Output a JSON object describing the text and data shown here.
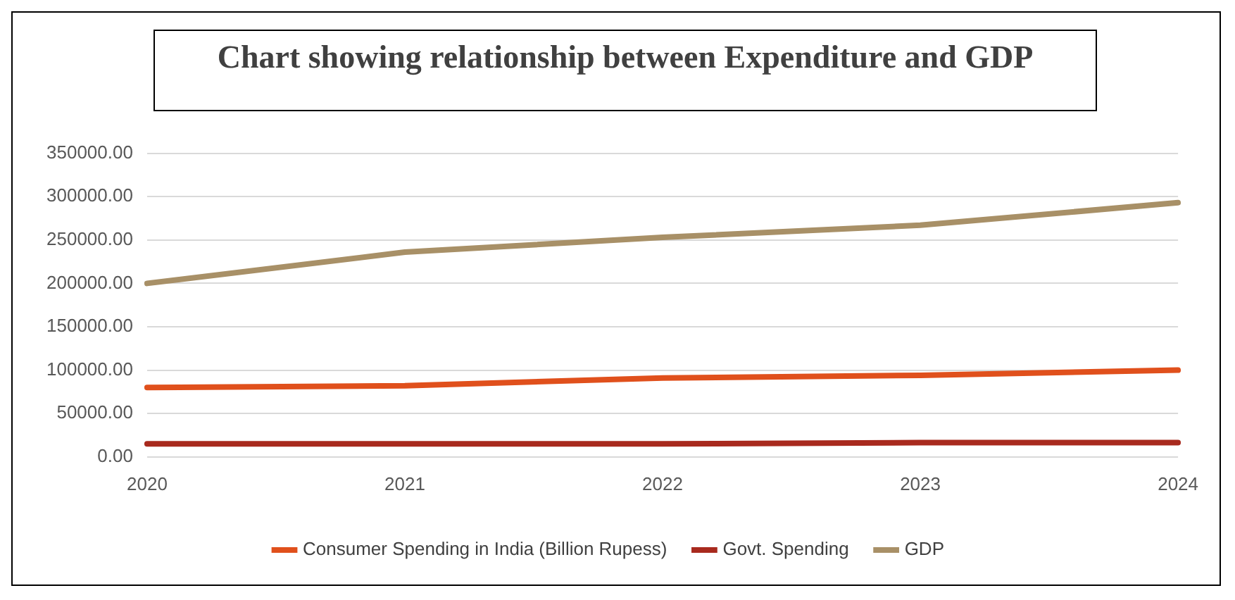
{
  "chart_data": {
    "type": "line",
    "title": "Chart showing relationship between Expenditure and GDP",
    "categories": [
      "2020",
      "2021",
      "2022",
      "2023",
      "2024"
    ],
    "series": [
      {
        "name": "Consumer Spending in India (Billion Rupess)",
        "color": "#e0501c",
        "values": [
          80000,
          82000,
          91000,
          94000,
          100000
        ]
      },
      {
        "name": "Govt. Spending",
        "color": "#a82a1e",
        "values": [
          15000,
          15000,
          15000,
          16500,
          16500
        ]
      },
      {
        "name": "GDP",
        "color": "#a89067",
        "values": [
          200000,
          236000,
          253000,
          267000,
          293000
        ]
      }
    ],
    "ylim": [
      0,
      350000
    ],
    "yticks": [
      {
        "value": 0,
        "label": "0.00"
      },
      {
        "value": 50000,
        "label": "50000.00"
      },
      {
        "value": 100000,
        "label": "100000.00"
      },
      {
        "value": 150000,
        "label": "150000.00"
      },
      {
        "value": 200000,
        "label": "200000.00"
      },
      {
        "value": 250000,
        "label": "250000.00"
      },
      {
        "value": 300000,
        "label": "300000.00"
      },
      {
        "value": 350000,
        "label": "350000.00"
      }
    ],
    "grid": "y",
    "legend": "bottom",
    "marker": "none",
    "line_style": "solid"
  }
}
